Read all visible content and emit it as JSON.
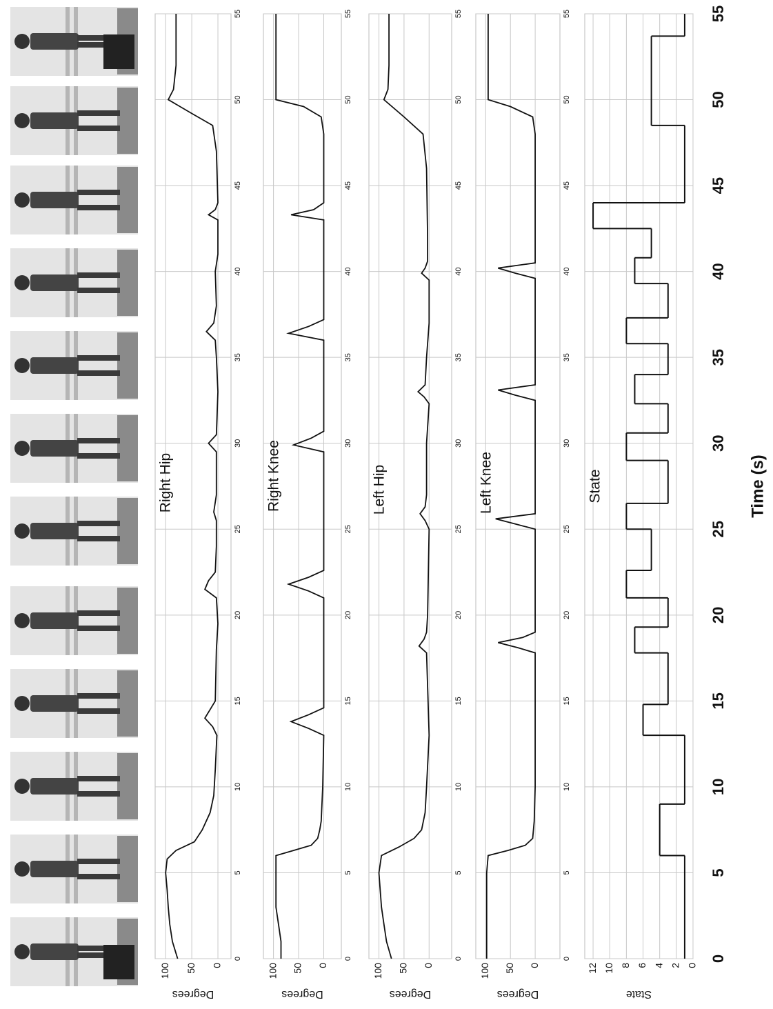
{
  "chart_data": [
    {
      "type": "line",
      "title": "Right Hip",
      "ylabel": "Degrees",
      "x": [
        0,
        1,
        2,
        3,
        4,
        5,
        5.8,
        6.3,
        6.8,
        7.5,
        8.5,
        9.5,
        11,
        13,
        13.5,
        14,
        14.5,
        15,
        18,
        19.5,
        21,
        21.5,
        22,
        22.5,
        24,
        25.5,
        26,
        27,
        29.5,
        30,
        30.5,
        33,
        35,
        36,
        36.5,
        37,
        38,
        40,
        41,
        43,
        43.3,
        43.6,
        44,
        47,
        48.5,
        49.2,
        50,
        50.6,
        52,
        55
      ],
      "series": [
        {
          "color": "#111111",
          "values": [
            77,
            87,
            92,
            95,
            97,
            100,
            97,
            80,
            45,
            30,
            15,
            8,
            5,
            2,
            10,
            25,
            15,
            5,
            3,
            0,
            3,
            25,
            18,
            5,
            3,
            3,
            8,
            3,
            3,
            18,
            3,
            0,
            3,
            5,
            22,
            8,
            3,
            5,
            0,
            0,
            18,
            5,
            0,
            3,
            10,
            50,
            95,
            85,
            80,
            80
          ]
        }
      ],
      "xlim": [
        0,
        55
      ],
      "xticks": [
        0,
        5,
        10,
        15,
        20,
        25,
        30,
        35,
        40,
        45,
        50,
        55
      ],
      "ylim": [
        -25,
        120
      ],
      "yticks": [
        0,
        50,
        100
      ],
      "grid": true
    },
    {
      "type": "line",
      "title": "Right Knee",
      "ylabel": "Degrees",
      "x": [
        0,
        1,
        2,
        3,
        5,
        6,
        6.3,
        6.6,
        7,
        7.5,
        8,
        10,
        13,
        13.4,
        13.8,
        14.2,
        14.6,
        21,
        21.4,
        21.8,
        22.2,
        22.6,
        29.5,
        29.9,
        30.3,
        30.7,
        36,
        36.4,
        36.8,
        37.2,
        43,
        43.3,
        43.6,
        44,
        48,
        49,
        49.6,
        50,
        55
      ],
      "series": [
        {
          "color": "#111111",
          "values": [
            85,
            85,
            90,
            95,
            95,
            95,
            60,
            25,
            12,
            8,
            5,
            2,
            0,
            30,
            65,
            30,
            0,
            0,
            30,
            70,
            30,
            0,
            0,
            60,
            25,
            0,
            0,
            70,
            30,
            0,
            0,
            65,
            20,
            0,
            0,
            5,
            40,
            95,
            95
          ]
        }
      ],
      "xlim": [
        0,
        55
      ],
      "xticks": [
        0,
        5,
        10,
        15,
        20,
        25,
        30,
        35,
        40,
        45,
        50,
        55
      ],
      "ylim": [
        -35,
        120
      ],
      "yticks": [
        0,
        50,
        100
      ],
      "grid": true
    },
    {
      "type": "line",
      "title": "Left Hip",
      "ylabel": "Degrees",
      "x": [
        0,
        1,
        2,
        3,
        5,
        6,
        6.5,
        7,
        7.5,
        8.5,
        10,
        13,
        17.8,
        18.2,
        18.6,
        19,
        20,
        25,
        25.5,
        25.9,
        26.3,
        27,
        30,
        32.3,
        32.7,
        33,
        33.4,
        35,
        37,
        39.5,
        39.9,
        40.2,
        40.6,
        42,
        46,
        48,
        49,
        50,
        50.6,
        52,
        55
      ],
      "series": [
        {
          "color": "#111111",
          "values": [
            75,
            85,
            90,
            95,
            100,
            95,
            60,
            30,
            15,
            8,
            5,
            0,
            5,
            20,
            10,
            5,
            3,
            0,
            8,
            18,
            8,
            5,
            5,
            0,
            10,
            22,
            8,
            5,
            0,
            0,
            15,
            8,
            3,
            3,
            5,
            12,
            50,
            90,
            82,
            80,
            80
          ]
        }
      ],
      "xlim": [
        0,
        55
      ],
      "xticks": [
        0,
        5,
        10,
        15,
        20,
        25,
        30,
        35,
        40,
        45,
        50,
        55
      ],
      "ylim": [
        -45,
        120
      ],
      "yticks": [
        0,
        50,
        100
      ],
      "grid": true
    },
    {
      "type": "line",
      "title": "Left Knee",
      "ylabel": "Degrees",
      "x": [
        0,
        2,
        5,
        6,
        6.3,
        6.6,
        7,
        8,
        10,
        17.8,
        18.1,
        18.4,
        18.7,
        19,
        25,
        25.3,
        25.6,
        25.9,
        32.5,
        32.8,
        33.1,
        33.4,
        39.6,
        39.9,
        40.2,
        40.5,
        48,
        49,
        49.6,
        50,
        55
      ],
      "series": [
        {
          "color": "#111111",
          "values": [
            98,
            98,
            98,
            95,
            55,
            20,
            5,
            2,
            0,
            0,
            35,
            75,
            25,
            0,
            0,
            40,
            80,
            0,
            0,
            40,
            75,
            0,
            0,
            40,
            75,
            0,
            0,
            5,
            50,
            95,
            95
          ]
        }
      ],
      "xlim": [
        0,
        55
      ],
      "xticks": [
        0,
        5,
        10,
        15,
        20,
        25,
        30,
        35,
        40,
        45,
        50,
        55
      ],
      "ylim": [
        -50,
        120
      ],
      "yticks": [
        0,
        50,
        100
      ],
      "grid": true
    },
    {
      "type": "step",
      "title": "State",
      "ylabel": "State",
      "xlabel": "Time (s)",
      "x": [
        0,
        6,
        9,
        13,
        14.8,
        17.8,
        19.3,
        21,
        22.6,
        25,
        26.5,
        29,
        30.6,
        32.3,
        34,
        35.8,
        37.3,
        39.3,
        40.8,
        42.5,
        44,
        48.5,
        53.7
      ],
      "series": [
        {
          "color": "#111111",
          "values": [
            1,
            4,
            1,
            6,
            3,
            7,
            3,
            8,
            5,
            8,
            3,
            8,
            3,
            7,
            3,
            8,
            3,
            7,
            5,
            12,
            1,
            5,
            1
          ]
        }
      ],
      "xlim": [
        0,
        55
      ],
      "xticks": [
        0,
        5,
        10,
        15,
        20,
        25,
        30,
        35,
        40,
        45,
        50,
        55
      ],
      "ylim": [
        0,
        13
      ],
      "yticks": [
        0,
        2,
        4,
        6,
        8,
        10,
        12
      ],
      "grid": true
    }
  ]
}
